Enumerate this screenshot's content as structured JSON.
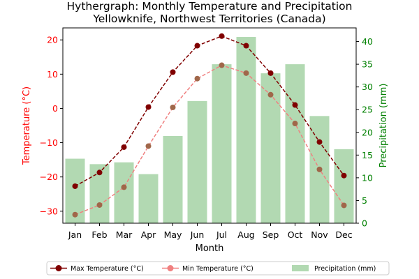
{
  "chart_data": {
    "type": "bar",
    "title": "Hythergraph: Monthly Temperature and Precipitation",
    "subtitle": "Yellowknife, Northwest Territories (Canada)",
    "xlabel": "Month",
    "ylabel_left": "Temperature (°C)",
    "ylabel_right": "Precipitation (mm)",
    "categories": [
      "Jan",
      "Feb",
      "Mar",
      "Apr",
      "May",
      "Jun",
      "Jul",
      "Aug",
      "Sep",
      "Oct",
      "Nov",
      "Dec"
    ],
    "left_axis": {
      "ylim": [
        -33.5,
        23.5
      ],
      "ticks": [
        -30,
        -20,
        -10,
        0,
        10,
        20
      ],
      "color": "#ff0000"
    },
    "right_axis": {
      "ylim": [
        0,
        43
      ],
      "ticks": [
        0,
        5,
        10,
        15,
        20,
        25,
        30,
        35,
        40
      ],
      "color": "#008000"
    },
    "series": [
      {
        "name": "Max Temperature (°C)",
        "type": "line",
        "axis": "left",
        "color": "#800000",
        "linestyle": "dashed",
        "values": [
          -22.7,
          -18.7,
          -11.3,
          0.4,
          10.6,
          18.3,
          21.1,
          18.3,
          10.3,
          1.0,
          -9.8,
          -19.6
        ]
      },
      {
        "name": "Min Temperature (°C)",
        "type": "line",
        "axis": "left",
        "color": "#f08080",
        "linestyle": "dashed",
        "values": [
          -31.0,
          -28.2,
          -23.0,
          -11.0,
          0.3,
          8.7,
          12.6,
          10.3,
          4.0,
          -4.4,
          -17.8,
          -28.3
        ]
      },
      {
        "name": "Precipitation (mm)",
        "type": "bar",
        "axis": "right",
        "color": "#b2d9b2",
        "values": [
          14.2,
          13.0,
          13.4,
          10.8,
          19.2,
          26.9,
          35.0,
          41.0,
          33.0,
          35.0,
          23.6,
          16.3
        ]
      }
    ],
    "marker_fill_overlap": "#a0674a",
    "legend_position": "bottom-center",
    "grid": false
  }
}
